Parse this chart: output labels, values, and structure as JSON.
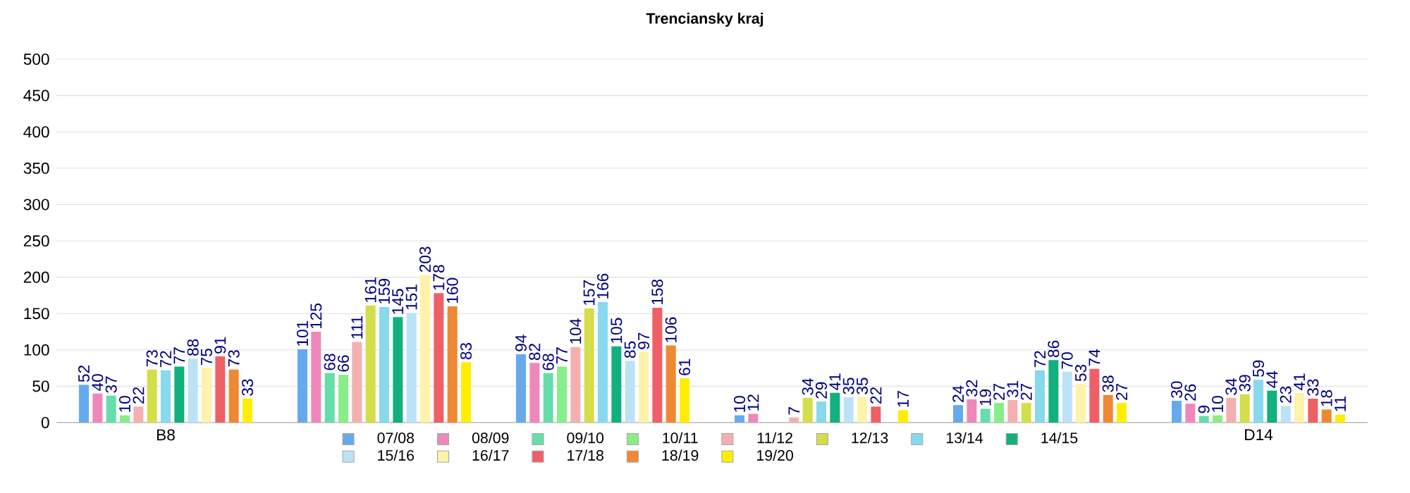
{
  "chart_data": {
    "type": "bar",
    "title": "Trenciansky kraj",
    "categories": [
      "B8",
      null,
      null,
      null,
      null,
      "D14"
    ],
    "series": [
      {
        "name": "07/08",
        "color": "#66aaee",
        "values": [
          52,
          101,
          94,
          10,
          24,
          30
        ]
      },
      {
        "name": "08/09",
        "color": "#ee88bb",
        "values": [
          40,
          125,
          82,
          12,
          32,
          26
        ]
      },
      {
        "name": "09/10",
        "color": "#66ddaa",
        "values": [
          37,
          68,
          68,
          null,
          19,
          9
        ]
      },
      {
        "name": "10/11",
        "color": "#88ee88",
        "values": [
          10,
          66,
          77,
          null,
          27,
          10
        ]
      },
      {
        "name": "11/12",
        "color": "#f4b0b0",
        "values": [
          22,
          111,
          104,
          7,
          31,
          34
        ]
      },
      {
        "name": "12/13",
        "color": "#d4dd4a",
        "values": [
          73,
          161,
          157,
          34,
          27,
          39
        ]
      },
      {
        "name": "13/14",
        "color": "#88d8ee",
        "values": [
          72,
          159,
          166,
          29,
          72,
          59
        ]
      },
      {
        "name": "14/15",
        "color": "#11b07e",
        "values": [
          77,
          145,
          105,
          41,
          86,
          44
        ]
      },
      {
        "name": "15/16",
        "color": "#bbe3f5",
        "values": [
          88,
          151,
          85,
          35,
          70,
          23
        ]
      },
      {
        "name": "16/17",
        "color": "#fff2aa",
        "values": [
          75,
          203,
          97,
          35,
          53,
          41
        ]
      },
      {
        "name": "17/18",
        "color": "#ee6066",
        "values": [
          91,
          178,
          158,
          22,
          74,
          33
        ]
      },
      {
        "name": "18/19",
        "color": "#ee8833",
        "values": [
          73,
          160,
          106,
          null,
          38,
          18
        ]
      },
      {
        "name": "19/20",
        "color": "#ffee00",
        "values": [
          33,
          83,
          61,
          17,
          27,
          11
        ]
      }
    ],
    "ylim": [
      0,
      500
    ],
    "yticks": [
      0,
      50,
      100,
      150,
      200,
      250,
      300,
      350,
      400,
      450,
      500
    ],
    "grid": "y",
    "legend": "bottom",
    "data_labels": true
  }
}
